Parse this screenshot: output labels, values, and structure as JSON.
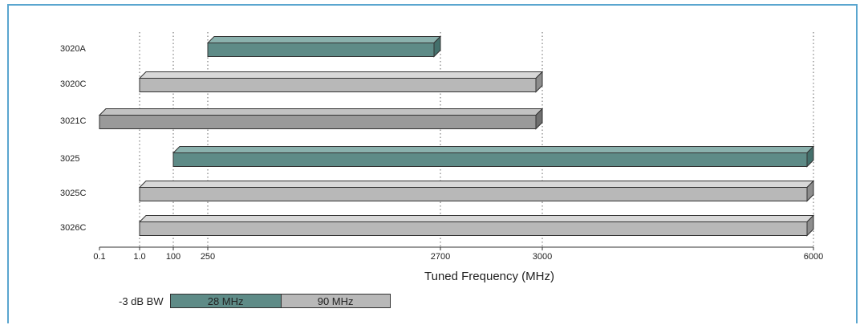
{
  "chart_data": {
    "type": "bar",
    "orientation": "horizontal",
    "xlabel": "Tuned Frequency (MHz)",
    "x_tick_labels": [
      "0.1",
      "1.0",
      "100",
      "250",
      "2700",
      "3000",
      "6000"
    ],
    "x_tick_values": [
      0.1,
      1.0,
      100,
      250,
      2700,
      3000,
      6000
    ],
    "gridlines": "vertical dotted at 1.0, 100, 250, 2700, 3000, 6000",
    "categories": [
      "3020A",
      "3020C",
      "3021C",
      "3025",
      "3025C",
      "3026C"
    ],
    "ranges": [
      {
        "model": "3020A",
        "start": 250,
        "end": 2700,
        "bandwidth": "28 MHz"
      },
      {
        "model": "3020C",
        "start": 1.0,
        "end": 3000,
        "bandwidth": "90 MHz"
      },
      {
        "model": "3021C",
        "start": 0.1,
        "end": 3000,
        "bandwidth": "90 MHz"
      },
      {
        "model": "3025",
        "start": 100,
        "end": 6000,
        "bandwidth": "28 MHz"
      },
      {
        "model": "3025C",
        "start": 1.0,
        "end": 6000,
        "bandwidth": "90 MHz"
      },
      {
        "model": "3026C",
        "start": 1.0,
        "end": 6000,
        "bandwidth": "90 MHz"
      }
    ],
    "legend": {
      "label": "-3 dB BW",
      "entries": [
        {
          "name": "28 MHz",
          "color": "#5e8b87"
        },
        {
          "name": "90 MHz",
          "color": "#b8b8b8"
        }
      ],
      "placement": "bottom-left"
    },
    "colors": {
      "teal": "#5e8b87",
      "light_gray": "#b8b8b8",
      "dark_gray": "#9a9a9a",
      "frame": "#5aa6cf"
    }
  }
}
